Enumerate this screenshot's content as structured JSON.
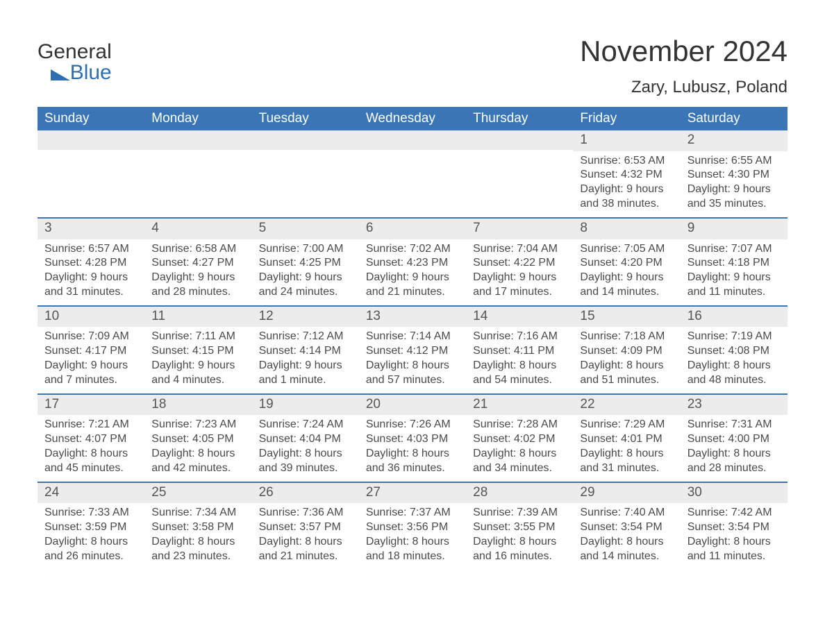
{
  "logo": {
    "word1": "General",
    "word2": "Blue"
  },
  "title": "November 2024",
  "location": "Zary, Lubusz, Poland",
  "colors": {
    "header_bg": "#3a76b5",
    "header_text": "#ffffff",
    "daynum_bg": "#ececec",
    "row_divider": "#3a76b5",
    "text": "#4a4a4a",
    "brand_blue": "#2f6fb0",
    "page_bg": "#ffffff"
  },
  "typography": {
    "title_fontsize": 42,
    "location_fontsize": 24,
    "dayheader_fontsize": 19,
    "daynum_fontsize": 19,
    "body_fontsize": 16,
    "logo_fontsize": 30
  },
  "day_headers": [
    "Sunday",
    "Monday",
    "Tuesday",
    "Wednesday",
    "Thursday",
    "Friday",
    "Saturday"
  ],
  "labels": {
    "sunrise": "Sunrise:",
    "sunset": "Sunset:",
    "daylight": "Daylight:"
  },
  "weeks": [
    [
      null,
      null,
      null,
      null,
      null,
      {
        "n": "1",
        "sunrise": "6:53 AM",
        "sunset": "4:32 PM",
        "daylight_l1": "9 hours",
        "daylight_l2": "and 38 minutes."
      },
      {
        "n": "2",
        "sunrise": "6:55 AM",
        "sunset": "4:30 PM",
        "daylight_l1": "9 hours",
        "daylight_l2": "and 35 minutes."
      }
    ],
    [
      {
        "n": "3",
        "sunrise": "6:57 AM",
        "sunset": "4:28 PM",
        "daylight_l1": "9 hours",
        "daylight_l2": "and 31 minutes."
      },
      {
        "n": "4",
        "sunrise": "6:58 AM",
        "sunset": "4:27 PM",
        "daylight_l1": "9 hours",
        "daylight_l2": "and 28 minutes."
      },
      {
        "n": "5",
        "sunrise": "7:00 AM",
        "sunset": "4:25 PM",
        "daylight_l1": "9 hours",
        "daylight_l2": "and 24 minutes."
      },
      {
        "n": "6",
        "sunrise": "7:02 AM",
        "sunset": "4:23 PM",
        "daylight_l1": "9 hours",
        "daylight_l2": "and 21 minutes."
      },
      {
        "n": "7",
        "sunrise": "7:04 AM",
        "sunset": "4:22 PM",
        "daylight_l1": "9 hours",
        "daylight_l2": "and 17 minutes."
      },
      {
        "n": "8",
        "sunrise": "7:05 AM",
        "sunset": "4:20 PM",
        "daylight_l1": "9 hours",
        "daylight_l2": "and 14 minutes."
      },
      {
        "n": "9",
        "sunrise": "7:07 AM",
        "sunset": "4:18 PM",
        "daylight_l1": "9 hours",
        "daylight_l2": "and 11 minutes."
      }
    ],
    [
      {
        "n": "10",
        "sunrise": "7:09 AM",
        "sunset": "4:17 PM",
        "daylight_l1": "9 hours",
        "daylight_l2": "and 7 minutes."
      },
      {
        "n": "11",
        "sunrise": "7:11 AM",
        "sunset": "4:15 PM",
        "daylight_l1": "9 hours",
        "daylight_l2": "and 4 minutes."
      },
      {
        "n": "12",
        "sunrise": "7:12 AM",
        "sunset": "4:14 PM",
        "daylight_l1": "9 hours",
        "daylight_l2": "and 1 minute."
      },
      {
        "n": "13",
        "sunrise": "7:14 AM",
        "sunset": "4:12 PM",
        "daylight_l1": "8 hours",
        "daylight_l2": "and 57 minutes."
      },
      {
        "n": "14",
        "sunrise": "7:16 AM",
        "sunset": "4:11 PM",
        "daylight_l1": "8 hours",
        "daylight_l2": "and 54 minutes."
      },
      {
        "n": "15",
        "sunrise": "7:18 AM",
        "sunset": "4:09 PM",
        "daylight_l1": "8 hours",
        "daylight_l2": "and 51 minutes."
      },
      {
        "n": "16",
        "sunrise": "7:19 AM",
        "sunset": "4:08 PM",
        "daylight_l1": "8 hours",
        "daylight_l2": "and 48 minutes."
      }
    ],
    [
      {
        "n": "17",
        "sunrise": "7:21 AM",
        "sunset": "4:07 PM",
        "daylight_l1": "8 hours",
        "daylight_l2": "and 45 minutes."
      },
      {
        "n": "18",
        "sunrise": "7:23 AM",
        "sunset": "4:05 PM",
        "daylight_l1": "8 hours",
        "daylight_l2": "and 42 minutes."
      },
      {
        "n": "19",
        "sunrise": "7:24 AM",
        "sunset": "4:04 PM",
        "daylight_l1": "8 hours",
        "daylight_l2": "and 39 minutes."
      },
      {
        "n": "20",
        "sunrise": "7:26 AM",
        "sunset": "4:03 PM",
        "daylight_l1": "8 hours",
        "daylight_l2": "and 36 minutes."
      },
      {
        "n": "21",
        "sunrise": "7:28 AM",
        "sunset": "4:02 PM",
        "daylight_l1": "8 hours",
        "daylight_l2": "and 34 minutes."
      },
      {
        "n": "22",
        "sunrise": "7:29 AM",
        "sunset": "4:01 PM",
        "daylight_l1": "8 hours",
        "daylight_l2": "and 31 minutes."
      },
      {
        "n": "23",
        "sunrise": "7:31 AM",
        "sunset": "4:00 PM",
        "daylight_l1": "8 hours",
        "daylight_l2": "and 28 minutes."
      }
    ],
    [
      {
        "n": "24",
        "sunrise": "7:33 AM",
        "sunset": "3:59 PM",
        "daylight_l1": "8 hours",
        "daylight_l2": "and 26 minutes."
      },
      {
        "n": "25",
        "sunrise": "7:34 AM",
        "sunset": "3:58 PM",
        "daylight_l1": "8 hours",
        "daylight_l2": "and 23 minutes."
      },
      {
        "n": "26",
        "sunrise": "7:36 AM",
        "sunset": "3:57 PM",
        "daylight_l1": "8 hours",
        "daylight_l2": "and 21 minutes."
      },
      {
        "n": "27",
        "sunrise": "7:37 AM",
        "sunset": "3:56 PM",
        "daylight_l1": "8 hours",
        "daylight_l2": "and 18 minutes."
      },
      {
        "n": "28",
        "sunrise": "7:39 AM",
        "sunset": "3:55 PM",
        "daylight_l1": "8 hours",
        "daylight_l2": "and 16 minutes."
      },
      {
        "n": "29",
        "sunrise": "7:40 AM",
        "sunset": "3:54 PM",
        "daylight_l1": "8 hours",
        "daylight_l2": "and 14 minutes."
      },
      {
        "n": "30",
        "sunrise": "7:42 AM",
        "sunset": "3:54 PM",
        "daylight_l1": "8 hours",
        "daylight_l2": "and 11 minutes."
      }
    ]
  ]
}
